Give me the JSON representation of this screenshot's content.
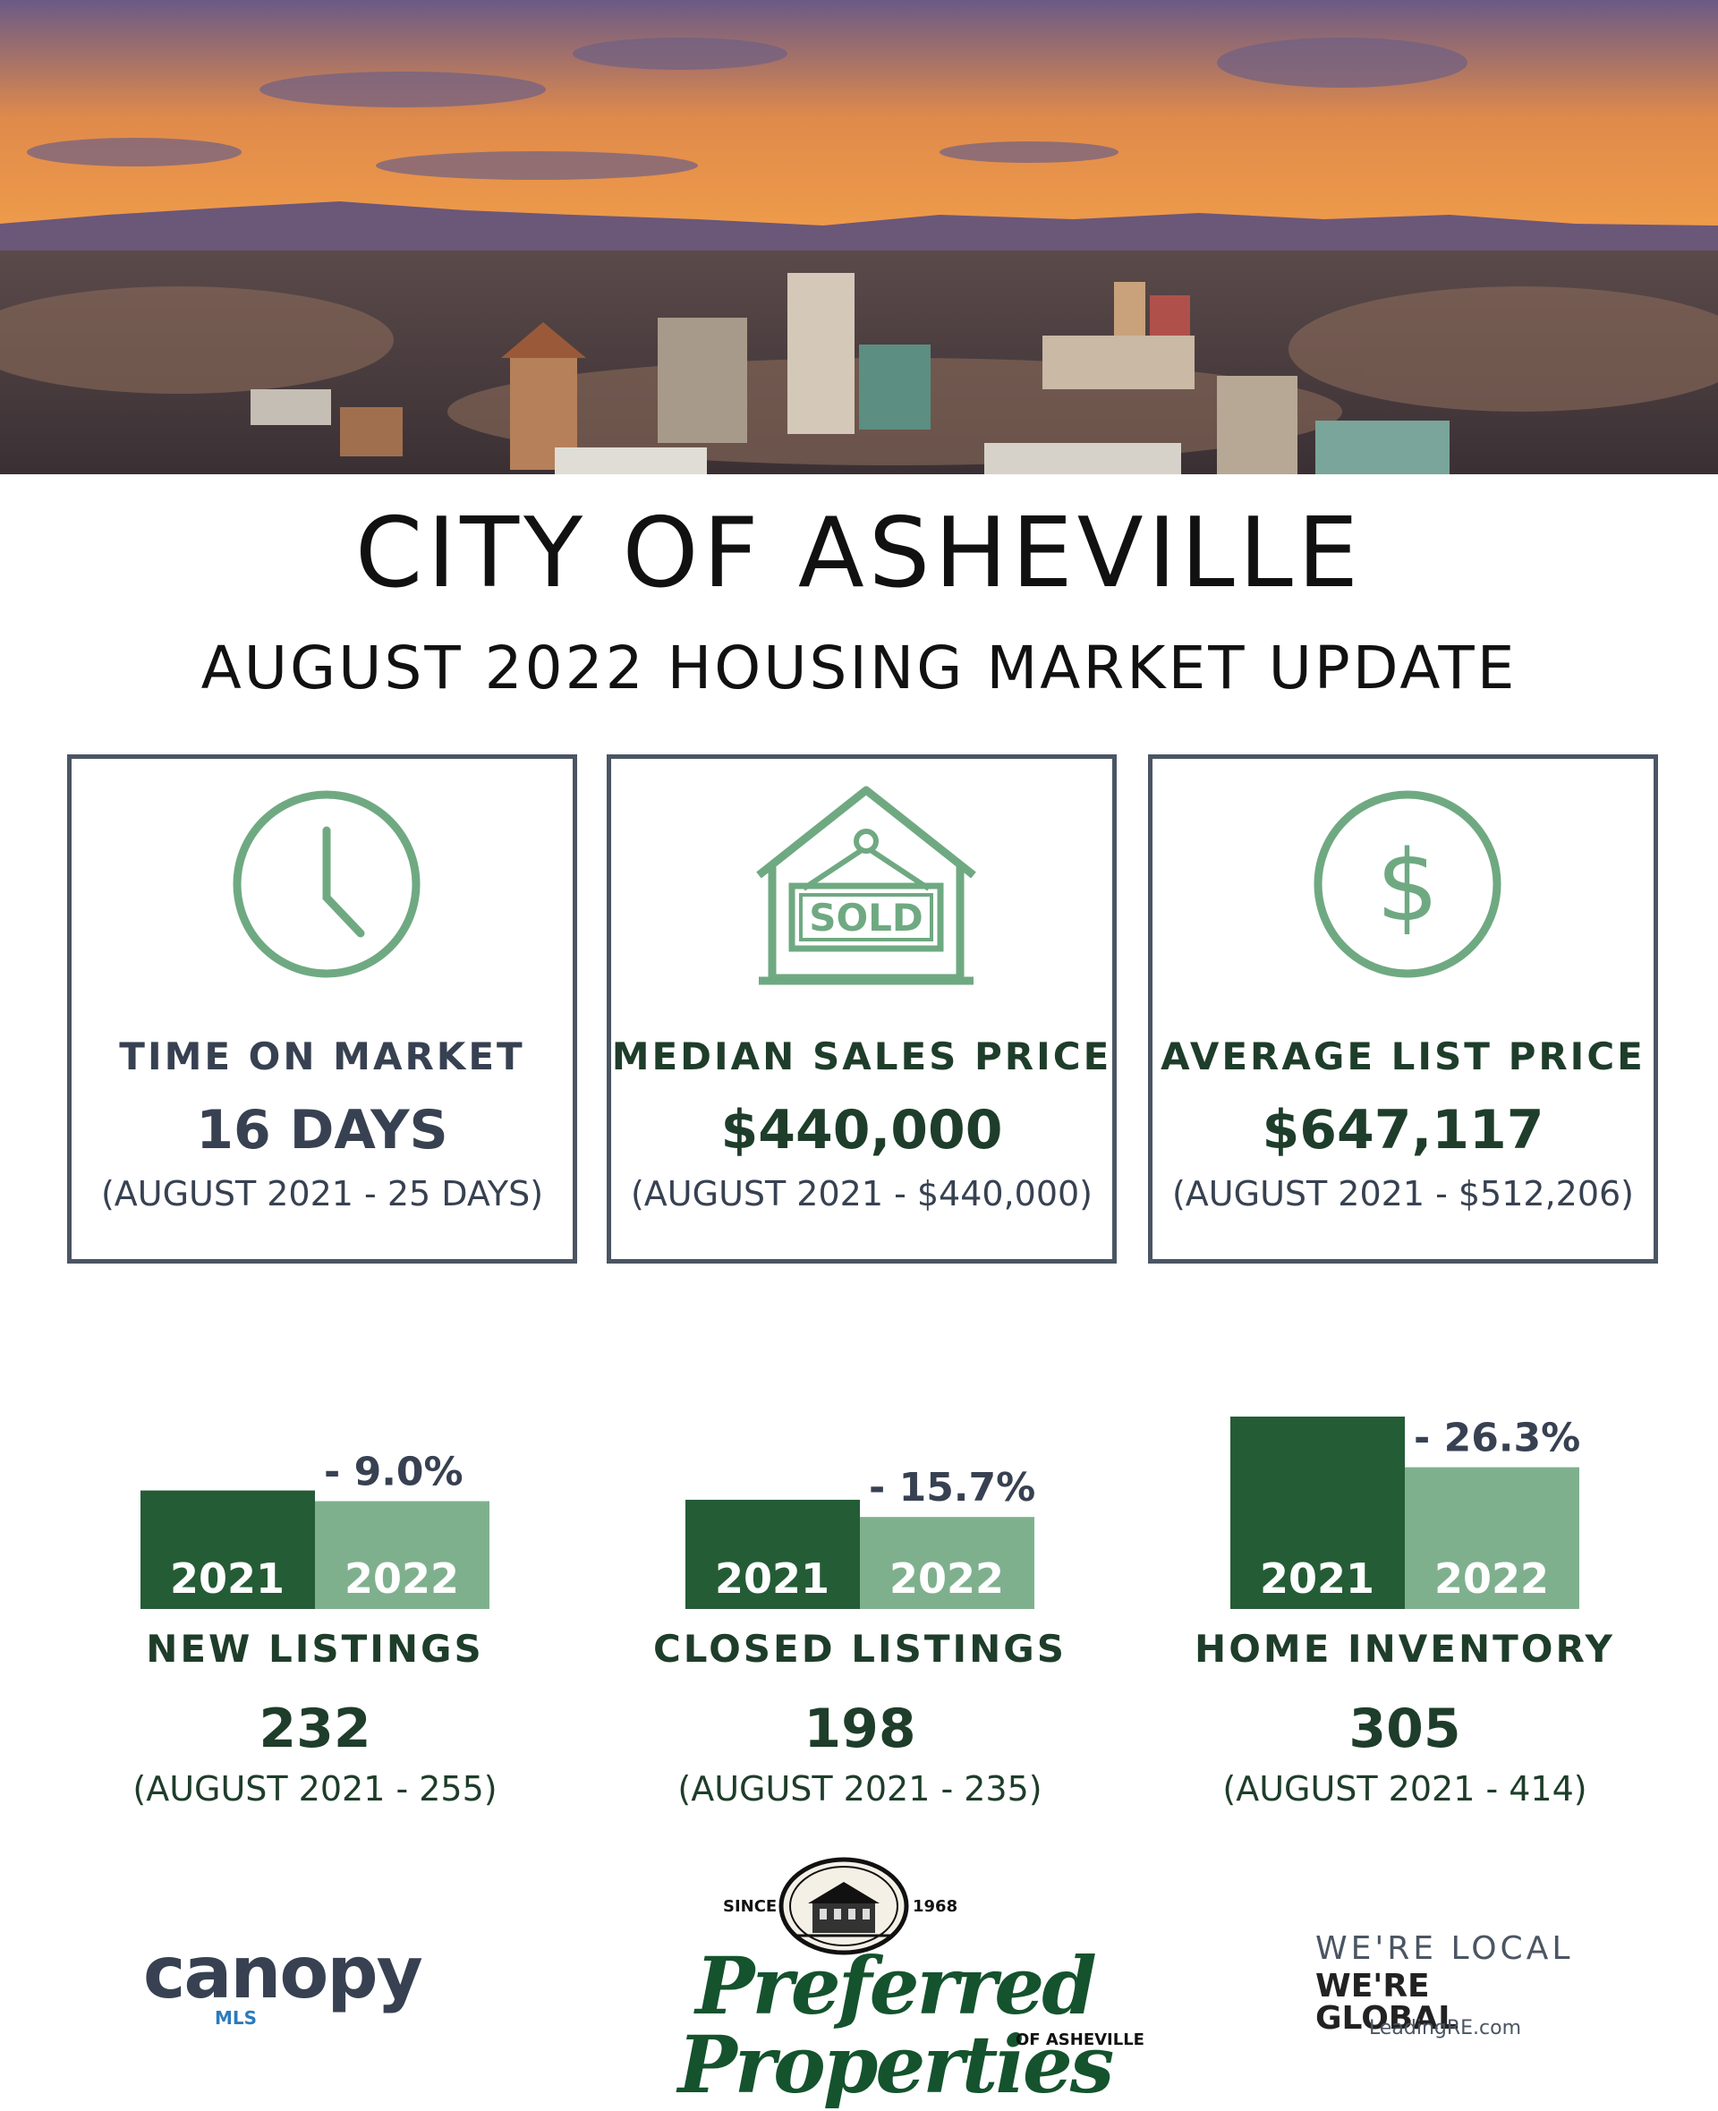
{
  "title": "CITY OF ASHEVILLE",
  "subtitle": "AUGUST 2022 HOUSING MARKET UPDATE",
  "colors": {
    "dark_green": "#245c36",
    "light_green": "#7fb08e",
    "icon_green": "#6fa982",
    "label_gray": "#374151",
    "value_dark_green": "#1e3d2a",
    "box_border": "#4b5563"
  },
  "stats": [
    {
      "icon": "clock-icon",
      "label": "TIME ON MARKET",
      "value": "16 DAYS",
      "previous": "(AUGUST 2021 - 25 DAYS)"
    },
    {
      "icon": "sold-house-icon",
      "icon_text": "SOLD",
      "label": "MEDIAN SALES PRICE",
      "value": "$440,000",
      "previous": "(AUGUST 2021 - $440,000)"
    },
    {
      "icon": "dollar-icon",
      "label": "AVERAGE LIST PRICE",
      "value": "$647,117",
      "previous": "(AUGUST 2021 - $512,206)"
    }
  ],
  "comparisons": [
    {
      "label": "NEW LISTINGS",
      "value": "232",
      "previous": "(AUGUST 2021 - 255)",
      "change": "- 9.0%",
      "value_2021": 255,
      "value_2022": 232,
      "year_a": "2021",
      "year_b": "2022"
    },
    {
      "label": "CLOSED LISTINGS",
      "value": "198",
      "previous": "(AUGUST 2021 - 235)",
      "change": "- 15.7%",
      "value_2021": 235,
      "value_2022": 198,
      "year_a": "2021",
      "year_b": "2022"
    },
    {
      "label": "HOME INVENTORY",
      "value": "305",
      "previous": "(AUGUST 2021 - 414)",
      "change": "- 26.3%",
      "value_2021": 414,
      "value_2022": 305,
      "year_a": "2021",
      "year_b": "2022"
    }
  ],
  "footer": {
    "canopy": {
      "word": "canopy",
      "sub": "MLS"
    },
    "preferred": {
      "since": "SINCE",
      "year": "1968",
      "name": "Preferred Properties",
      "of": "OF ASHEVILLE"
    },
    "leading": {
      "line1": "WE'RE LOCAL",
      "line2": "WE'RE GLOBAL",
      "url": "LeadingRE.com"
    }
  }
}
